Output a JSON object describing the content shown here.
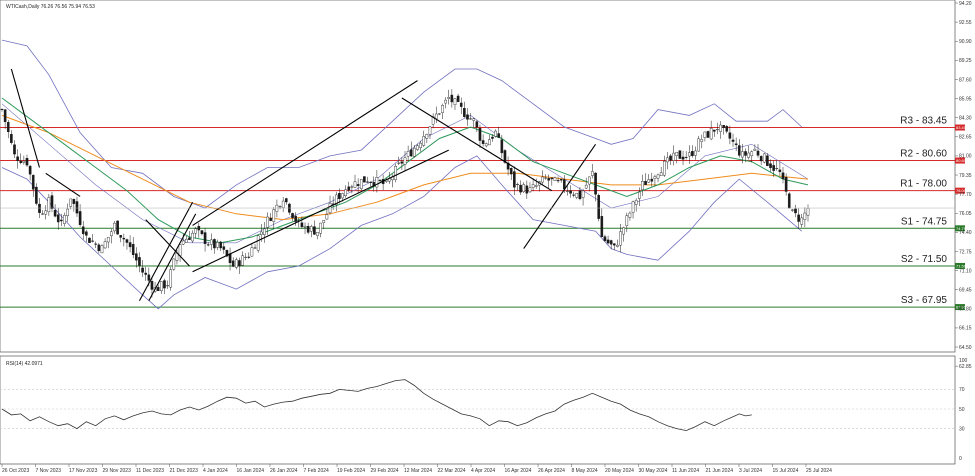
{
  "header": {
    "symbol_line": "WTICash,Daily  76.26 76.56 75.94 76.53",
    "rsi_line": "RSI(14) 42.0971"
  },
  "colors": {
    "resistance": "#d42a2a",
    "support": "#2a7a2a",
    "candle": "#1a1a1a",
    "bollinger": "#7070c0",
    "ma_fast": "#2e9a5a",
    "ma_slow": "#f08c1e",
    "trendline": "#000000",
    "grid_frame": "#555555"
  },
  "chart_data": [
    {
      "type": "candlestick",
      "title": "WTICash,Daily  76.26 76.56 75.94 76.53",
      "ylim": [
        63.9,
        94.2
      ],
      "price_ticks": [
        "94.20",
        "92.55",
        "90.90",
        "89.25",
        "87.60",
        "85.95",
        "84.30",
        "82.65",
        "81.00",
        "79.35",
        "77.70",
        "76.05",
        "74.40",
        "72.75",
        "71.10",
        "69.45",
        "67.80",
        "66.15",
        "64.50",
        "62.85"
      ],
      "date_ticks": [
        "26 Oct 2023",
        "7 Nov 2023",
        "17 Nov 2023",
        "29 Nov 2023",
        "11 Dec 2023",
        "21 Dec 2023",
        "4 Jan 2024",
        "16 Jan 2024",
        "26 Jan 2024",
        "7 Feb 2024",
        "19 Feb 2024",
        "29 Feb 2024",
        "12 Mar 2024",
        "22 Mar 2024",
        "4 Apr 2024",
        "16 Apr 2024",
        "26 Apr 2024",
        "8 May 2024",
        "20 May 2024",
        "30 May 2024",
        "11 Jun 2024",
        "21 Jun 2024",
        "3 Jul 2024",
        "15 Jul 2024",
        "25 Jul 2024"
      ],
      "levels": [
        {
          "label": "R3 - 83.45",
          "value": 83.45,
          "tag": "83.45",
          "kind": "resistance"
        },
        {
          "label": "R2 - 80.60",
          "value": 80.6,
          "tag": "80.60",
          "kind": "resistance"
        },
        {
          "label": "R1 - 78.00",
          "value": 78.0,
          "tag": "78.00",
          "kind": "resistance"
        },
        {
          "label": "S1 - 74.75",
          "value": 74.75,
          "tag": "74.75",
          "kind": "support"
        },
        {
          "label": "S2 - 71.50",
          "value": 71.5,
          "tag": "71.50",
          "kind": "support"
        },
        {
          "label": "S3 - 67.95",
          "value": 67.95,
          "tag": "67.95",
          "kind": "support"
        }
      ],
      "close_path": [
        [
          0,
          85.0
        ],
        [
          4,
          81.0
        ],
        [
          8,
          80.5
        ],
        [
          12,
          76.0
        ],
        [
          15,
          77.0
        ],
        [
          19,
          75.0
        ],
        [
          22,
          77.5
        ],
        [
          27,
          74.0
        ],
        [
          32,
          73.0
        ],
        [
          36,
          75.0
        ],
        [
          40,
          73.5
        ],
        [
          45,
          71.0
        ],
        [
          49,
          69.5
        ],
        [
          53,
          70.0
        ],
        [
          57,
          73.5
        ],
        [
          62,
          74.5
        ],
        [
          66,
          73.5
        ],
        [
          70,
          73.0
        ],
        [
          74,
          71.5
        ],
        [
          79,
          72.5
        ],
        [
          84,
          75.0
        ],
        [
          90,
          77.5
        ],
        [
          95,
          75.0
        ],
        [
          101,
          74.5
        ],
        [
          106,
          77.0
        ],
        [
          111,
          78.5
        ],
        [
          117,
          79.0
        ],
        [
          123,
          78.5
        ],
        [
          128,
          80.5
        ],
        [
          133,
          82.0
        ],
        [
          139,
          84.5
        ],
        [
          143,
          86.0
        ],
        [
          147,
          85.0
        ],
        [
          151,
          84.0
        ],
        [
          154,
          82.0
        ],
        [
          158,
          83.0
        ],
        [
          161,
          80.5
        ],
        [
          164,
          78.5
        ],
        [
          169,
          78.0
        ],
        [
          174,
          79.0
        ],
        [
          179,
          78.5
        ],
        [
          185,
          77.5
        ],
        [
          189,
          79.5
        ],
        [
          192,
          74.0
        ],
        [
          196,
          73.0
        ],
        [
          200,
          75.5
        ],
        [
          205,
          78.5
        ],
        [
          211,
          80.0
        ],
        [
          216,
          81.0
        ],
        [
          220,
          81.0
        ],
        [
          224,
          82.5
        ],
        [
          229,
          83.5
        ],
        [
          233,
          82.5
        ],
        [
          237,
          81.0
        ],
        [
          241,
          81.5
        ],
        [
          245,
          80.5
        ],
        [
          249,
          79.5
        ],
        [
          253,
          76.0
        ],
        [
          256,
          75.5
        ],
        [
          258,
          76.5
        ]
      ],
      "bollinger_mid": [
        [
          0,
          85.5
        ],
        [
          15,
          82.0
        ],
        [
          30,
          78.5
        ],
        [
          45,
          75.5
        ],
        [
          60,
          73.5
        ],
        [
          75,
          73.5
        ],
        [
          90,
          75.5
        ],
        [
          105,
          77.0
        ],
        [
          120,
          79.0
        ],
        [
          135,
          82.5
        ],
        [
          150,
          84.5
        ],
        [
          165,
          81.5
        ],
        [
          180,
          79.0
        ],
        [
          195,
          76.5
        ],
        [
          210,
          77.5
        ],
        [
          225,
          81.0
        ],
        [
          240,
          82.0
        ],
        [
          258,
          79.0
        ]
      ],
      "bollinger_upper": [
        [
          0,
          91.0
        ],
        [
          8,
          90.5
        ],
        [
          15,
          88.0
        ],
        [
          25,
          83.0
        ],
        [
          35,
          80.0
        ],
        [
          45,
          79.5
        ],
        [
          55,
          77.5
        ],
        [
          65,
          76.5
        ],
        [
          75,
          78.5
        ],
        [
          85,
          80.0
        ],
        [
          95,
          80.0
        ],
        [
          105,
          81.0
        ],
        [
          115,
          81.5
        ],
        [
          125,
          84.0
        ],
        [
          135,
          86.5
        ],
        [
          145,
          88.5
        ],
        [
          152,
          88.5
        ],
        [
          160,
          87.5
        ],
        [
          170,
          85.5
        ],
        [
          180,
          83.5
        ],
        [
          190,
          82.5
        ],
        [
          195,
          82.0
        ],
        [
          202,
          82.5
        ],
        [
          210,
          85.0
        ],
        [
          220,
          84.5
        ],
        [
          228,
          85.5
        ],
        [
          235,
          84.0
        ],
        [
          245,
          84.0
        ],
        [
          250,
          85.0
        ],
        [
          256,
          83.5
        ]
      ],
      "bollinger_lower": [
        [
          0,
          80.0
        ],
        [
          8,
          79.0
        ],
        [
          15,
          77.0
        ],
        [
          25,
          74.0
        ],
        [
          35,
          71.5
        ],
        [
          45,
          69.0
        ],
        [
          50,
          67.8
        ],
        [
          55,
          69.0
        ],
        [
          65,
          70.5
        ],
        [
          75,
          69.5
        ],
        [
          85,
          71.0
        ],
        [
          95,
          71.5
        ],
        [
          105,
          73.0
        ],
        [
          115,
          75.0
        ],
        [
          125,
          76.0
        ],
        [
          135,
          77.5
        ],
        [
          145,
          80.0
        ],
        [
          152,
          81.0
        ],
        [
          160,
          78.5
        ],
        [
          170,
          75.5
        ],
        [
          180,
          75.0
        ],
        [
          190,
          74.5
        ],
        [
          195,
          73.0
        ],
        [
          200,
          72.5
        ],
        [
          210,
          72.0
        ],
        [
          220,
          74.5
        ],
        [
          228,
          77.0
        ],
        [
          236,
          79.0
        ],
        [
          245,
          77.0
        ],
        [
          256,
          74.5
        ]
      ],
      "ma_fast": [
        [
          0,
          86.0
        ],
        [
          10,
          84.0
        ],
        [
          20,
          82.0
        ],
        [
          30,
          80.0
        ],
        [
          40,
          78.0
        ],
        [
          50,
          75.5
        ],
        [
          60,
          74.0
        ],
        [
          70,
          73.5
        ],
        [
          80,
          74.0
        ],
        [
          90,
          75.0
        ],
        [
          100,
          76.0
        ],
        [
          110,
          77.0
        ],
        [
          120,
          78.5
        ],
        [
          130,
          80.5
        ],
        [
          140,
          82.5
        ],
        [
          150,
          83.5
        ],
        [
          160,
          82.5
        ],
        [
          170,
          80.5
        ],
        [
          180,
          79.5
        ],
        [
          190,
          78.5
        ],
        [
          200,
          77.5
        ],
        [
          210,
          78.5
        ],
        [
          220,
          80.0
        ],
        [
          230,
          81.0
        ],
        [
          240,
          80.5
        ],
        [
          250,
          79.0
        ],
        [
          258,
          78.5
        ]
      ],
      "ma_slow": [
        [
          0,
          84.5
        ],
        [
          15,
          83.0
        ],
        [
          30,
          81.0
        ],
        [
          45,
          79.0
        ],
        [
          60,
          77.0
        ],
        [
          75,
          76.0
        ],
        [
          90,
          75.5
        ],
        [
          105,
          76.0
        ],
        [
          120,
          77.0
        ],
        [
          135,
          78.5
        ],
        [
          150,
          79.5
        ],
        [
          165,
          79.5
        ],
        [
          180,
          79.0
        ],
        [
          195,
          78.5
        ],
        [
          210,
          78.5
        ],
        [
          225,
          79.0
        ],
        [
          240,
          79.5
        ],
        [
          258,
          79.0
        ]
      ],
      "trendlines": [
        [
          [
            3,
            88.5
          ],
          [
            12,
            80.0
          ]
        ],
        [
          [
            14,
            79.5
          ],
          [
            25,
            77.5
          ]
        ],
        [
          [
            44,
            68.5
          ],
          [
            61,
            77.0
          ]
        ],
        [
          [
            46,
            75.5
          ],
          [
            60,
            71.5
          ]
        ],
        [
          [
            47,
            68.5
          ],
          [
            62,
            76.0
          ]
        ],
        [
          [
            61,
            71.0
          ],
          [
            143,
            81.5
          ]
        ],
        [
          [
            61,
            75.0
          ],
          [
            133,
            87.5
          ]
        ],
        [
          [
            128,
            86.0
          ],
          [
            176,
            78.0
          ]
        ],
        [
          [
            167,
            73.0
          ],
          [
            190,
            82.0
          ]
        ]
      ]
    },
    {
      "type": "line",
      "title": "RSI(14) 42.0971",
      "ylim": [
        0,
        100
      ],
      "y_ticks": [
        "100",
        "70",
        "50",
        "30",
        "0"
      ],
      "guides": [
        70,
        50,
        30
      ],
      "values": [
        [
          0,
          50
        ],
        [
          3,
          44
        ],
        [
          6,
          45
        ],
        [
          9,
          38
        ],
        [
          12,
          42
        ],
        [
          15,
          37
        ],
        [
          18,
          33
        ],
        [
          21,
          35
        ],
        [
          24,
          30
        ],
        [
          27,
          37
        ],
        [
          30,
          33
        ],
        [
          33,
          40
        ],
        [
          36,
          43
        ],
        [
          39,
          39
        ],
        [
          42,
          43
        ],
        [
          45,
          46
        ],
        [
          48,
          48
        ],
        [
          51,
          45
        ],
        [
          54,
          44
        ],
        [
          57,
          49
        ],
        [
          60,
          52
        ],
        [
          63,
          49
        ],
        [
          66,
          53
        ],
        [
          69,
          58
        ],
        [
          72,
          62
        ],
        [
          75,
          61
        ],
        [
          78,
          56
        ],
        [
          81,
          58
        ],
        [
          84,
          52
        ],
        [
          87,
          55
        ],
        [
          90,
          57
        ],
        [
          93,
          58
        ],
        [
          96,
          61
        ],
        [
          99,
          63
        ],
        [
          102,
          65
        ],
        [
          105,
          66
        ],
        [
          108,
          70
        ],
        [
          111,
          69
        ],
        [
          114,
          68
        ],
        [
          117,
          71
        ],
        [
          120,
          73
        ],
        [
          123,
          76
        ],
        [
          126,
          79
        ],
        [
          129,
          80
        ],
        [
          132,
          74
        ],
        [
          135,
          66
        ],
        [
          138,
          60
        ],
        [
          141,
          55
        ],
        [
          144,
          50
        ],
        [
          147,
          45
        ],
        [
          150,
          43
        ],
        [
          153,
          40
        ],
        [
          156,
          33
        ],
        [
          159,
          38
        ],
        [
          162,
          37
        ],
        [
          165,
          33
        ],
        [
          168,
          36
        ],
        [
          171,
          41
        ],
        [
          174,
          45
        ],
        [
          177,
          48
        ],
        [
          180,
          55
        ],
        [
          183,
          59
        ],
        [
          186,
          62
        ],
        [
          189,
          66
        ],
        [
          192,
          62
        ],
        [
          195,
          58
        ],
        [
          198,
          55
        ],
        [
          201,
          49
        ],
        [
          204,
          45
        ],
        [
          207,
          42
        ],
        [
          210,
          37
        ],
        [
          213,
          33
        ],
        [
          216,
          30
        ],
        [
          219,
          28
        ],
        [
          222,
          32
        ],
        [
          225,
          37
        ],
        [
          228,
          33
        ],
        [
          231,
          38
        ],
        [
          234,
          42
        ],
        [
          236,
          45
        ],
        [
          238,
          43
        ],
        [
          240,
          44
        ]
      ]
    }
  ]
}
